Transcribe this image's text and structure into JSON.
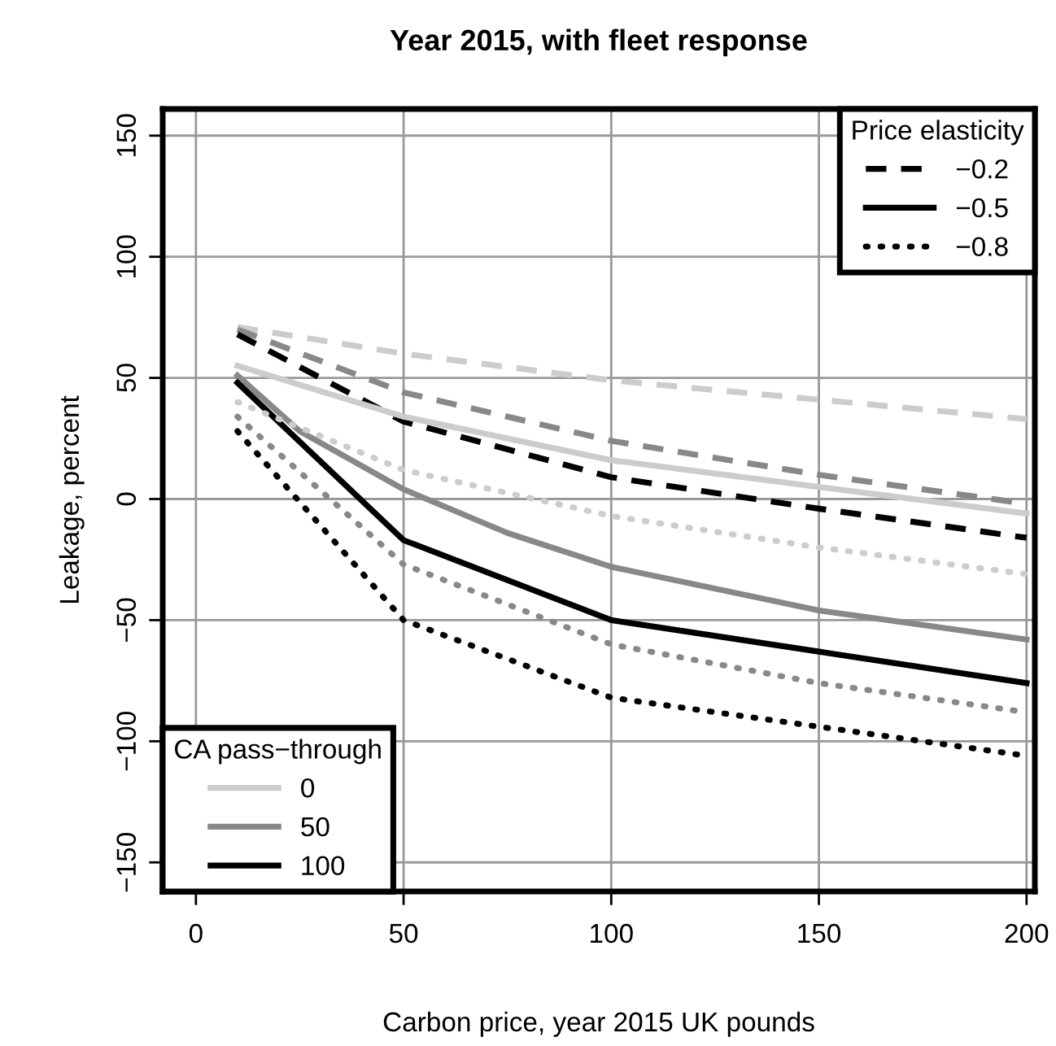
{
  "chart_data": {
    "type": "line",
    "title": "Year 2015, with fleet response",
    "xlabel": "Carbon price, year 2015 UK pounds",
    "ylabel": "Leakage, percent",
    "xlim": [
      -8,
      202
    ],
    "ylim": [
      -162,
      161
    ],
    "xticks": [
      0,
      50,
      100,
      150,
      200
    ],
    "yticks": [
      {
        "value": -150,
        "label": "−150"
      },
      {
        "value": -100,
        "label": "−100"
      },
      {
        "value": -50,
        "label": "−50"
      },
      0,
      50,
      100,
      150
    ],
    "grid": true,
    "series": [
      {
        "color": "#cccccc",
        "line_style": "dashed",
        "x": [
          10,
          50,
          100,
          150,
          200
        ],
        "values": [
          71,
          60,
          49,
          41,
          33
        ]
      },
      {
        "color": "#888888",
        "line_style": "dashed",
        "x": [
          10,
          50,
          100,
          150,
          200
        ],
        "values": [
          70,
          44,
          24,
          10,
          -2
        ]
      },
      {
        "color": "#000000",
        "line_style": "dashed",
        "x": [
          10,
          50,
          100,
          150,
          200
        ],
        "values": [
          68,
          32,
          9,
          -4,
          -16
        ]
      },
      {
        "color": "#cccccc",
        "line_style": "solid",
        "x": [
          10,
          50,
          100,
          150,
          200
        ],
        "values": [
          55,
          34,
          16,
          5,
          -6
        ]
      },
      {
        "color": "#888888",
        "line_style": "solid",
        "x": [
          10,
          25,
          50,
          75,
          100,
          150,
          200
        ],
        "values": [
          51,
          28,
          4,
          -14,
          -28,
          -46,
          -58
        ]
      },
      {
        "color": "#000000",
        "line_style": "solid",
        "x": [
          10,
          50,
          100,
          150,
          200
        ],
        "values": [
          48,
          -17,
          -50,
          -63,
          -76
        ]
      },
      {
        "color": "#cccccc",
        "line_style": "dotted",
        "x": [
          10,
          50,
          100,
          150,
          200
        ],
        "values": [
          40,
          12,
          -7,
          -20,
          -31
        ]
      },
      {
        "color": "#888888",
        "line_style": "dotted",
        "x": [
          10,
          50,
          100,
          150,
          200
        ],
        "values": [
          34,
          -27,
          -60,
          -76,
          -88
        ]
      },
      {
        "color": "#000000",
        "line_style": "dotted",
        "x": [
          10,
          50,
          100,
          150,
          200
        ],
        "values": [
          28,
          -50,
          -82,
          -94,
          -106
        ]
      }
    ],
    "annotations": [
      "Price elasticity",
      "−0.2",
      "−0.5",
      "−0.8",
      "CA pass−through",
      "0",
      "50",
      "100"
    ]
  }
}
